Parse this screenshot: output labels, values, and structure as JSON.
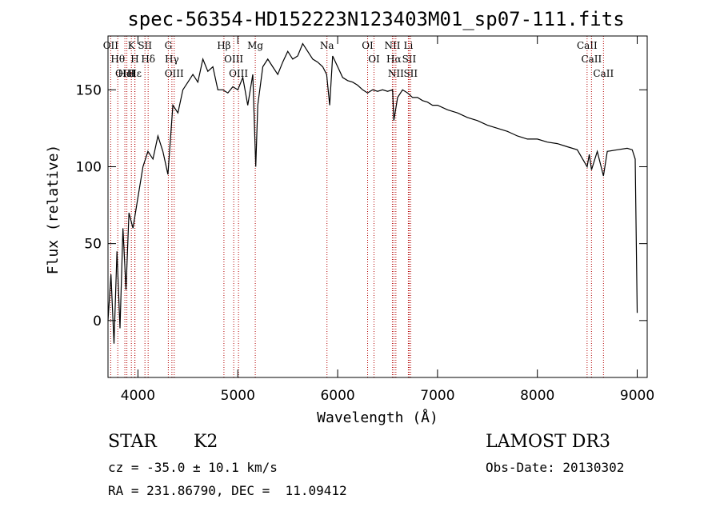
{
  "chart_data": {
    "type": "line",
    "title": "spec-56354-HD152223N123403M01_sp07-111.fits",
    "xlabel": "Wavelength (Å)",
    "ylabel": "Flux (relative)",
    "xlim": [
      3700,
      9100
    ],
    "ylim": [
      -37,
      185
    ],
    "xticks": [
      4000,
      5000,
      6000,
      7000,
      8000,
      9000
    ],
    "yticks": [
      0,
      50,
      100,
      150
    ],
    "series": [
      {
        "name": "flux",
        "x": [
          3700,
          3730,
          3760,
          3790,
          3820,
          3850,
          3880,
          3910,
          3950,
          4000,
          4050,
          4100,
          4150,
          4200,
          4250,
          4300,
          4350,
          4400,
          4450,
          4500,
          4550,
          4600,
          4650,
          4700,
          4750,
          4800,
          4850,
          4900,
          4950,
          5000,
          5050,
          5100,
          5150,
          5180,
          5200,
          5250,
          5300,
          5350,
          5400,
          5450,
          5500,
          5550,
          5600,
          5650,
          5700,
          5750,
          5800,
          5850,
          5890,
          5920,
          5950,
          6000,
          6050,
          6100,
          6150,
          6200,
          6250,
          6300,
          6350,
          6400,
          6450,
          6500,
          6550,
          6563,
          6600,
          6650,
          6700,
          6750,
          6800,
          6850,
          6900,
          6950,
          7000,
          7100,
          7200,
          7300,
          7400,
          7500,
          7600,
          7700,
          7800,
          7900,
          8000,
          8100,
          8200,
          8300,
          8400,
          8498,
          8520,
          8542,
          8600,
          8662,
          8700,
          8800,
          8900,
          8950,
          8980,
          9000
        ],
        "y": [
          0,
          30,
          -15,
          45,
          -5,
          60,
          20,
          70,
          60,
          80,
          100,
          110,
          105,
          120,
          110,
          95,
          140,
          135,
          150,
          155,
          160,
          155,
          170,
          162,
          165,
          150,
          150,
          148,
          152,
          150,
          158,
          140,
          160,
          100,
          140,
          165,
          170,
          165,
          160,
          168,
          175,
          170,
          172,
          180,
          175,
          170,
          168,
          165,
          160,
          140,
          172,
          165,
          158,
          156,
          155,
          153,
          150,
          148,
          150,
          149,
          150,
          149,
          150,
          130,
          145,
          150,
          148,
          145,
          145,
          143,
          142,
          140,
          140,
          137,
          135,
          132,
          130,
          127,
          125,
          123,
          120,
          118,
          118,
          116,
          115,
          113,
          111,
          100,
          108,
          98,
          110,
          94,
          110,
          111,
          112,
          111,
          105,
          5
        ],
        "color": "#000000"
      }
    ],
    "lines": [
      {
        "label": "Hθ",
        "x": 3798
      },
      {
        "label": "OII",
        "x": 3727
      },
      {
        "label": "OIII",
        "x": 3869
      },
      {
        "label": "K",
        "x": 3934
      },
      {
        "label": "HeI",
        "x": 3889
      },
      {
        "label": "Hε",
        "x": 3970
      },
      {
        "label": "H",
        "x": 3968
      },
      {
        "label": "Hδ",
        "x": 4102
      },
      {
        "label": "SII",
        "x": 4070
      },
      {
        "label": "OIII",
        "x": 4363
      },
      {
        "label": "Hγ",
        "x": 4340
      },
      {
        "label": "G",
        "x": 4304
      },
      {
        "label": "OIII",
        "x": 5007
      },
      {
        "label": "OIII",
        "x": 4959
      },
      {
        "label": "Hβ",
        "x": 4861
      },
      {
        "label": "Mg",
        "x": 5175
      },
      {
        "label": "Na",
        "x": 5893
      },
      {
        "label": "OI",
        "x": 6300
      },
      {
        "label": "OI",
        "x": 6364
      },
      {
        "label": "Hα",
        "x": 6563
      },
      {
        "label": "SII",
        "x": 6716
      },
      {
        "label": "NII",
        "x": 6548
      },
      {
        "label": "Li",
        "x": 6708
      },
      {
        "label": "NII",
        "x": 6583
      },
      {
        "label": "SII",
        "x": 6731
      },
      {
        "label": "CaII",
        "x": 8542
      },
      {
        "label": "CaII",
        "x": 8498
      },
      {
        "label": "CaII",
        "x": 8662
      }
    ]
  },
  "info": {
    "class_label": "STAR",
    "subclass": "K2",
    "survey": "LAMOST DR3",
    "cz_text": "cz = -35.0 ± 10.1 km/s",
    "obs_date_text": "Obs-Date: 20130302",
    "coords_text": "RA = 231.86790, DEC =  11.09412"
  }
}
